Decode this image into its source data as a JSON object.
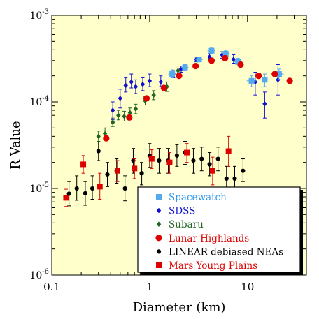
{
  "chart_data": {
    "type": "scatter",
    "title": "",
    "xlabel": "Diameter (km)",
    "ylabel": "R Value",
    "xscale": "log",
    "yscale": "log",
    "xlim": [
      0.1,
      40
    ],
    "ylim": [
      1e-06,
      0.001
    ],
    "x_tick_labels": [
      {
        "value": 0.1,
        "label": "0.1"
      },
      {
        "value": 1,
        "label": "1"
      },
      {
        "value": 10,
        "label": "10"
      }
    ],
    "y_tick_labels": [
      {
        "value": 1e-06,
        "base": "10",
        "exp": "-6"
      },
      {
        "value": 1e-05,
        "base": "10",
        "exp": "-5"
      },
      {
        "value": 0.0001,
        "base": "10",
        "exp": "-4"
      },
      {
        "value": 0.001,
        "base": "10",
        "exp": "-3"
      }
    ],
    "grid": false,
    "legend_position": "bottom-right",
    "colors": {
      "plot_background": "#ffffcc",
      "axis": "#000000"
    },
    "series": [
      {
        "name": "Spacewatch",
        "marker": "square",
        "color": "#55aaee",
        "points": [
          {
            "x": 1.7,
            "y": 0.00021,
            "lo": 0.00019,
            "hi": 0.000235,
            "xlo": 1.55,
            "xhi": 1.85
          },
          {
            "x": 2.3,
            "y": 0.00025,
            "lo": 0.00023,
            "hi": 0.00027,
            "xlo": 2.1,
            "xhi": 2.5
          },
          {
            "x": 3.2,
            "y": 0.00031,
            "lo": 0.00029,
            "hi": 0.00033,
            "xlo": 2.9,
            "xhi": 3.5
          },
          {
            "x": 4.3,
            "y": 0.00039,
            "lo": 0.00036,
            "hi": 0.00042,
            "xlo": 3.9,
            "xhi": 4.7
          },
          {
            "x": 6.0,
            "y": 0.00036,
            "lo": 0.00033,
            "hi": 0.00039,
            "xlo": 5.4,
            "xhi": 6.6
          },
          {
            "x": 8.0,
            "y": 0.00029,
            "lo": 0.00026,
            "hi": 0.00032,
            "xlo": 7.2,
            "xhi": 8.8
          },
          {
            "x": 11.0,
            "y": 0.000175,
            "lo": 0.00015,
            "hi": 0.0002,
            "xlo": 9.8,
            "xhi": 12.2
          },
          {
            "x": 15.0,
            "y": 0.00018,
            "lo": 0.00015,
            "hi": 0.00021,
            "xlo": 13.5,
            "xhi": 16.5
          },
          {
            "x": 21.0,
            "y": 0.00021,
            "lo": 0.00018,
            "hi": 0.00024,
            "xlo": 18.5,
            "xhi": 23.5
          }
        ]
      },
      {
        "name": "SDSS",
        "marker": "diamond",
        "color": "#1111cc",
        "points": [
          {
            "x": 0.42,
            "y": 8e-05,
            "lo": 6.2e-05,
            "hi": 0.0001
          },
          {
            "x": 0.5,
            "y": 0.00011,
            "lo": 8.5e-05,
            "hi": 0.00014
          },
          {
            "x": 0.57,
            "y": 0.000155,
            "lo": 0.00013,
            "hi": 0.00019
          },
          {
            "x": 0.65,
            "y": 0.00017,
            "lo": 0.000145,
            "hi": 0.00021
          },
          {
            "x": 0.72,
            "y": 0.00015,
            "lo": 0.000125,
            "hi": 0.00018
          },
          {
            "x": 0.85,
            "y": 0.00016,
            "lo": 0.000135,
            "hi": 0.00019
          },
          {
            "x": 1.0,
            "y": 0.000175,
            "lo": 0.00015,
            "hi": 0.00021
          },
          {
            "x": 1.3,
            "y": 0.00017,
            "lo": 0.00015,
            "hi": 0.0002
          },
          {
            "x": 1.75,
            "y": 0.00021,
            "lo": 0.00019,
            "hi": 0.00023
          },
          {
            "x": 2.1,
            "y": 0.00024,
            "lo": 0.00022,
            "hi": 0.00026
          },
          {
            "x": 3.0,
            "y": 0.00031,
            "lo": 0.00029,
            "hi": 0.00033
          },
          {
            "x": 4.1,
            "y": 0.00033,
            "lo": 0.00031,
            "hi": 0.00036
          },
          {
            "x": 5.5,
            "y": 0.00035,
            "lo": 0.00032,
            "hi": 0.00038
          },
          {
            "x": 7.2,
            "y": 0.00031,
            "lo": 0.00028,
            "hi": 0.00035
          },
          {
            "x": 12.0,
            "y": 0.00017,
            "lo": 0.00012,
            "hi": 0.00022
          },
          {
            "x": 15.0,
            "y": 9.5e-05,
            "lo": 6.5e-05,
            "hi": 0.00013
          },
          {
            "x": 20.5,
            "y": 0.00018,
            "lo": 0.00012,
            "hi": 0.00027
          }
        ]
      },
      {
        "name": "Subaru",
        "marker": "diamond",
        "color": "#226622",
        "points": [
          {
            "x": 0.3,
            "y": 4e-05,
            "lo": 3.5e-05,
            "hi": 4.6e-05
          },
          {
            "x": 0.35,
            "y": 4.3e-05,
            "lo": 3.7e-05,
            "hi": 5e-05
          },
          {
            "x": 0.42,
            "y": 5.8e-05,
            "lo": 5.2e-05,
            "hi": 6.5e-05
          },
          {
            "x": 0.48,
            "y": 7e-05,
            "lo": 6.2e-05,
            "hi": 8e-05
          },
          {
            "x": 0.55,
            "y": 6.8e-05,
            "lo": 6e-05,
            "hi": 7.8e-05
          },
          {
            "x": 0.63,
            "y": 7.5e-05,
            "lo": 6.6e-05,
            "hi": 8.5e-05
          },
          {
            "x": 0.72,
            "y": 8.3e-05,
            "lo": 7.3e-05,
            "hi": 9.4e-05
          },
          {
            "x": 0.9,
            "y": 0.000103,
            "lo": 9.2e-05,
            "hi": 0.000116
          },
          {
            "x": 1.1,
            "y": 0.00012,
            "lo": 0.000106,
            "hi": 0.000135
          },
          {
            "x": 1.5,
            "y": 0.00015,
            "lo": 0.000132,
            "hi": 0.00017
          },
          {
            "x": 1.95,
            "y": 0.00023,
            "lo": 0.0002,
            "hi": 0.00026
          }
        ]
      },
      {
        "name": "Lunar Highlands",
        "marker": "circle",
        "color": "#dd0000",
        "points": [
          {
            "x": 0.36,
            "y": 3.8e-05
          },
          {
            "x": 0.62,
            "y": 6.6e-05
          },
          {
            "x": 0.93,
            "y": 0.00011
          },
          {
            "x": 1.4,
            "y": 0.000145
          },
          {
            "x": 2.0,
            "y": 0.0002
          },
          {
            "x": 2.95,
            "y": 0.00026
          },
          {
            "x": 4.3,
            "y": 0.0003
          },
          {
            "x": 5.9,
            "y": 0.00032
          },
          {
            "x": 8.5,
            "y": 0.00027
          },
          {
            "x": 13.0,
            "y": 0.0002
          },
          {
            "x": 19.0,
            "y": 0.00021
          },
          {
            "x": 27.0,
            "y": 0.000175
          }
        ]
      },
      {
        "name": "LINEAR debiased NEAs",
        "marker": "circle-small",
        "color": "#000000",
        "points": [
          {
            "x": 0.15,
            "y": 8.7e-06,
            "lo": 6.3e-06,
            "hi": 1.2e-05
          },
          {
            "x": 0.18,
            "y": 1e-05,
            "lo": 7.3e-06,
            "hi": 1.4e-05
          },
          {
            "x": 0.22,
            "y": 8.8e-06,
            "lo": 6.4e-06,
            "hi": 1.2e-05
          },
          {
            "x": 0.26,
            "y": 1e-05,
            "lo": 7.5e-06,
            "hi": 1.4e-05
          },
          {
            "x": 0.3,
            "y": 2.7e-05,
            "lo": 2.1e-05,
            "hi": 3.5e-05
          },
          {
            "x": 0.37,
            "y": 1.45e-05,
            "lo": 1.05e-05,
            "hi": 2e-05
          },
          {
            "x": 0.46,
            "y": 1.6e-05,
            "lo": 1.15e-05,
            "hi": 2.2e-05
          },
          {
            "x": 0.56,
            "y": 1e-05,
            "lo": 7.2e-06,
            "hi": 1.4e-05
          },
          {
            "x": 0.68,
            "y": 2.1e-05,
            "lo": 1.5e-05,
            "hi": 2.9e-05
          },
          {
            "x": 0.83,
            "y": 1.5e-05,
            "lo": 1.1e-05,
            "hi": 2e-05
          },
          {
            "x": 1.0,
            "y": 2.4e-05,
            "lo": 1.75e-05,
            "hi": 3.3e-05
          },
          {
            "x": 1.25,
            "y": 2.1e-05,
            "lo": 1.5e-05,
            "hi": 2.9e-05
          },
          {
            "x": 1.55,
            "y": 2.1e-05,
            "lo": 1.5e-05,
            "hi": 2.9e-05
          },
          {
            "x": 1.9,
            "y": 2.4e-05,
            "lo": 1.8e-05,
            "hi": 3.2e-05
          },
          {
            "x": 2.3,
            "y": 2.6e-05,
            "lo": 1.9e-05,
            "hi": 3.5e-05
          },
          {
            "x": 2.8,
            "y": 2.1e-05,
            "lo": 1.5e-05,
            "hi": 2.9e-05
          },
          {
            "x": 3.4,
            "y": 2.2e-05,
            "lo": 1.6e-05,
            "hi": 3e-05
          },
          {
            "x": 4.1,
            "y": 1.9e-05,
            "lo": 1.4e-05,
            "hi": 2.6e-05
          },
          {
            "x": 5.0,
            "y": 2.2e-05,
            "lo": 1.6e-05,
            "hi": 3e-05
          },
          {
            "x": 6.1,
            "y": 1.3e-05,
            "lo": 9.5e-06,
            "hi": 1.8e-05
          },
          {
            "x": 7.4,
            "y": 1.3e-05,
            "lo": 9.5e-06,
            "hi": 1.8e-05
          },
          {
            "x": 9.0,
            "y": 1.6e-05,
            "lo": 1.2e-05,
            "hi": 2.2e-05
          }
        ]
      },
      {
        "name": "Mars Young Plains",
        "marker": "square",
        "color": "#dd0000",
        "points": [
          {
            "x": 0.14,
            "y": 7.8e-06,
            "lo": 6.2e-06,
            "hi": 9.8e-06
          },
          {
            "x": 0.21,
            "y": 1.9e-05,
            "lo": 1.5e-05,
            "hi": 2.4e-05
          },
          {
            "x": 0.31,
            "y": 1.05e-05,
            "lo": 7.5e-06,
            "hi": 1.5e-05
          },
          {
            "x": 0.47,
            "y": 1.6e-05,
            "lo": 1.2e-05,
            "hi": 2.1e-05
          },
          {
            "x": 0.7,
            "y": 1.7e-05,
            "lo": 1.3e-05,
            "hi": 2.2e-05
          },
          {
            "x": 1.05,
            "y": 2.2e-05,
            "lo": 1.7e-05,
            "hi": 2.8e-05
          },
          {
            "x": 1.6,
            "y": 2e-05,
            "lo": 1.5e-05,
            "hi": 2.6e-05
          },
          {
            "x": 2.4,
            "y": 2.6e-05,
            "lo": 2e-05,
            "hi": 3.3e-05
          },
          {
            "x": 4.4,
            "y": 1.6e-05,
            "lo": 1.1e-05,
            "hi": 2.3e-05
          },
          {
            "x": 6.4,
            "y": 2.7e-05,
            "lo": 1.8e-05,
            "hi": 4e-05
          }
        ]
      }
    ],
    "legend": [
      {
        "label": "Spacewatch",
        "text_color": "#3399ee",
        "marker": "square",
        "marker_color": "#55aaee"
      },
      {
        "label": "SDSS",
        "text_color": "#1111cc",
        "marker": "diamond",
        "marker_color": "#1111cc"
      },
      {
        "label": "Subaru",
        "text_color": "#226622",
        "marker": "diamond",
        "marker_color": "#226622"
      },
      {
        "label": "Lunar Highlands",
        "text_color": "#dd0000",
        "marker": "circle",
        "marker_color": "#dd0000"
      },
      {
        "label": "LINEAR debiased NEAs",
        "text_color": "#000000",
        "marker": "circle-small",
        "marker_color": "#000000"
      },
      {
        "label": "Mars Young Plains",
        "text_color": "#dd0000",
        "marker": "square",
        "marker_color": "#dd0000"
      }
    ]
  }
}
